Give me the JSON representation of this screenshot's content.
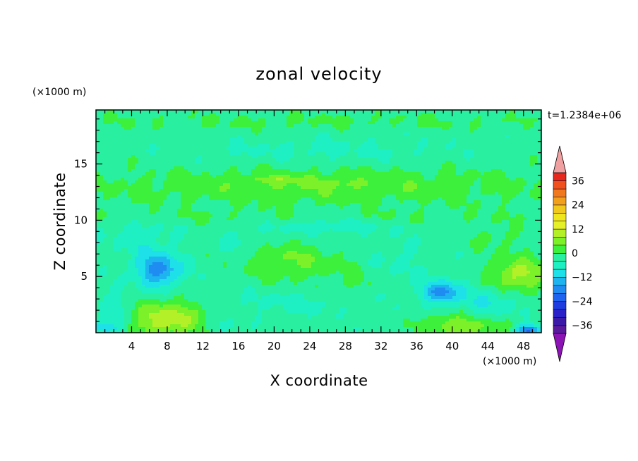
{
  "chart_data": {
    "type": "heatmap",
    "title": "zonal velocity",
    "xlabel": "X coordinate",
    "ylabel": "Z coordinate",
    "x_unit_label": "(×1000 m)",
    "y_unit_label": "(×1000 m)",
    "time_label": "t=1.2384e+06",
    "xlim": [
      0,
      50
    ],
    "ylim": [
      0,
      19.8
    ],
    "x_ticks": [
      4,
      8,
      12,
      16,
      20,
      24,
      28,
      32,
      36,
      40,
      44,
      48
    ],
    "y_ticks": [
      5,
      10,
      15
    ],
    "colorbar": {
      "levels": [
        -40,
        -36,
        -32,
        -28,
        -24,
        -20,
        -16,
        -12,
        -8,
        -4,
        0,
        4,
        8,
        12,
        16,
        20,
        24,
        28,
        32,
        36,
        40
      ],
      "colors": [
        "#5a1a9e",
        "#3c1aa8",
        "#2a22c8",
        "#1e3ce0",
        "#1e64f0",
        "#1e8cf0",
        "#1eb4f0",
        "#1ee0e8",
        "#1ef0c4",
        "#28f0a0",
        "#3cf03c",
        "#7cf028",
        "#b4f028",
        "#e6f028",
        "#f0e61e",
        "#f0c81e",
        "#f0a01e",
        "#f0781e",
        "#f0501e",
        "#e6281e"
      ],
      "under_color": "#8c14b4",
      "over_color": "#f0a0a0",
      "tick_labels": [
        "36",
        "24",
        "12",
        "0",
        "−12",
        "−24",
        "−36"
      ],
      "tick_values": [
        36,
        24,
        12,
        0,
        -12,
        -24,
        -36
      ]
    },
    "background_value": -2,
    "features": [
      {
        "x": 25,
        "z": 16.2,
        "sx": 14,
        "sz": 1.2,
        "amp": -3
      },
      {
        "x": 25,
        "z": 13,
        "sx": 26,
        "sz": 1.6,
        "amp": 5.5
      },
      {
        "x": 25,
        "z": 18.8,
        "sx": 30,
        "sz": 0.7,
        "amp": 2.5
      },
      {
        "x": 25,
        "z": 10.3,
        "sx": 30,
        "sz": 0.6,
        "amp": 2
      },
      {
        "x": 21,
        "z": 13.6,
        "sx": 4,
        "sz": 0.4,
        "amp": 4
      },
      {
        "x": 28,
        "z": 13.3,
        "sx": 3,
        "sz": 0.3,
        "amp": 3
      },
      {
        "x": 26,
        "z": 9.5,
        "sx": 6,
        "sz": 0.8,
        "amp": -5
      },
      {
        "x": 7,
        "z": 5.6,
        "sx": 2.6,
        "sz": 1.5,
        "amp": -16
      },
      {
        "x": 5,
        "z": 8.5,
        "sx": 4,
        "sz": 1.5,
        "amp": -4
      },
      {
        "x": 8,
        "z": 1.2,
        "sx": 4.2,
        "sz": 1.6,
        "amp": 13
      },
      {
        "x": 22,
        "z": 6.3,
        "sx": 4.5,
        "sz": 1.6,
        "amp": 6.5
      },
      {
        "x": 22,
        "z": 2.7,
        "sx": 9,
        "sz": 1.1,
        "amp": -3
      },
      {
        "x": 29,
        "z": 4.5,
        "sx": 2.8,
        "sz": 2.0,
        "amp": 2.5
      },
      {
        "x": 38.8,
        "z": 3.6,
        "sx": 2.2,
        "sz": 1.0,
        "amp": -16
      },
      {
        "x": 34,
        "z": 6.5,
        "sx": 3.5,
        "sz": 1.8,
        "amp": -3
      },
      {
        "x": 41,
        "z": 0.6,
        "sx": 4.2,
        "sz": 1.0,
        "amp": 10
      },
      {
        "x": 47.5,
        "z": 5.2,
        "sx": 3,
        "sz": 1.4,
        "amp": 12
      },
      {
        "x": 44,
        "z": 2.5,
        "sx": 3,
        "sz": 1.4,
        "amp": -6
      },
      {
        "x": 48.5,
        "z": 0.2,
        "sx": 1.2,
        "sz": 0.5,
        "amp": -20
      },
      {
        "x": 2,
        "z": 2,
        "sx": 2,
        "sz": 2,
        "amp": -5
      },
      {
        "x": 14,
        "z": 0.6,
        "sx": 2.5,
        "sz": 0.7,
        "amp": -4
      },
      {
        "x": 1,
        "z": 0.4,
        "sx": 1.5,
        "sz": 0.5,
        "amp": -10
      },
      {
        "x": 45,
        "z": 8.5,
        "sx": 3,
        "sz": 1.2,
        "amp": 3
      },
      {
        "x": 16,
        "z": 8.2,
        "sx": 3,
        "sz": 1.0,
        "amp": -3
      }
    ]
  }
}
